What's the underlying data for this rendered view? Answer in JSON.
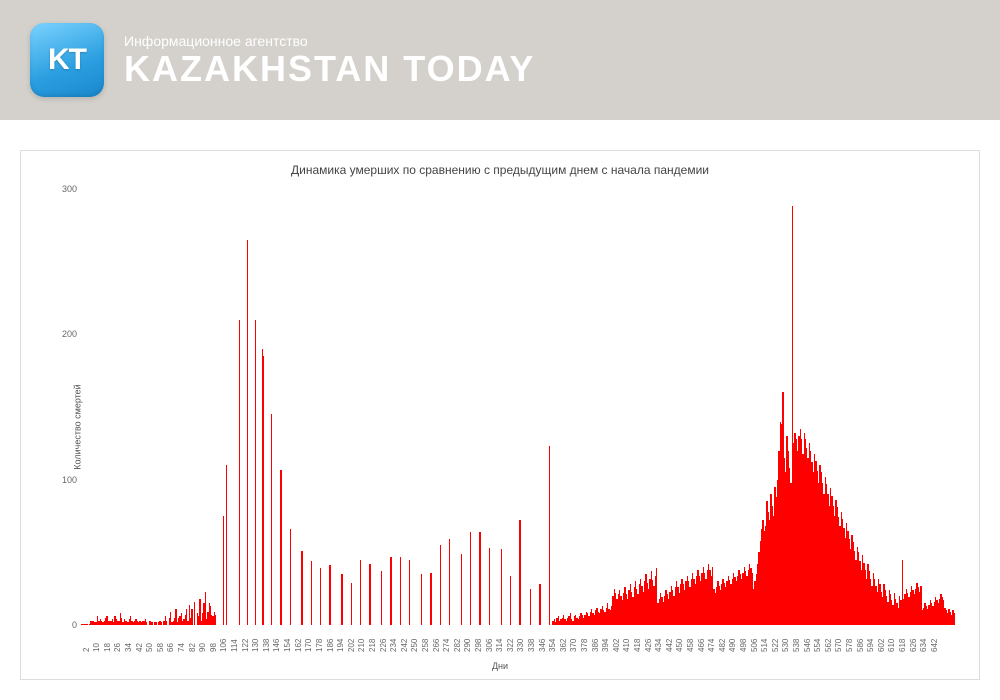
{
  "header": {
    "band_color": "#d4d1cc",
    "logo_text": "KT",
    "subtitle": "Информационное агентство",
    "maintitle": "KAZAKHSTAN TODAY",
    "text_color": "#ffffff"
  },
  "chart": {
    "type": "bar",
    "title": "Динамика умерших по сравнению с предыдущим днем с начала пандемии",
    "title_fontsize": 12,
    "ylabel": "Количество смертей",
    "xlabel": "Дни",
    "label_fontsize": 9,
    "bar_color": "#ff0000",
    "background_color": "#ffffff",
    "border_color": "#dddddd",
    "ylim": [
      0,
      300
    ],
    "yticks": [
      0,
      100,
      200,
      300
    ],
    "xtick_start": 2,
    "xtick_step": 8,
    "xtick_end": 642,
    "data_start_day": 2,
    "values": [
      1,
      1,
      1,
      1,
      1,
      0,
      1,
      3,
      3,
      3,
      2,
      2,
      6,
      3,
      4,
      3,
      2,
      3,
      5,
      6,
      3,
      3,
      3,
      4,
      2,
      6,
      4,
      3,
      3,
      8,
      5,
      2,
      4,
      3,
      3,
      2,
      4,
      6,
      3,
      2,
      3,
      4,
      3,
      2,
      3,
      2,
      3,
      3,
      4,
      2,
      0,
      3,
      3,
      2,
      0,
      2,
      2,
      0,
      2,
      3,
      2,
      0,
      3,
      6,
      3,
      0,
      5,
      9,
      2,
      3,
      5,
      11,
      2,
      5,
      6,
      8,
      3,
      4,
      7,
      11,
      3,
      14,
      5,
      11,
      0,
      16,
      0,
      8,
      6,
      18,
      3,
      8,
      15,
      23,
      4,
      9,
      15,
      13,
      7,
      6,
      9,
      7,
      0,
      0,
      0,
      0,
      0,
      75,
      0,
      110,
      0,
      0,
      0,
      0,
      0,
      0,
      0,
      0,
      0,
      210,
      0,
      0,
      0,
      0,
      0,
      265,
      0,
      0,
      0,
      0,
      0,
      210,
      0,
      0,
      0,
      0,
      190,
      185,
      0,
      0,
      0,
      0,
      0,
      145,
      0,
      0,
      0,
      0,
      0,
      0,
      107,
      0,
      0,
      0,
      0,
      0,
      0,
      66,
      0,
      0,
      0,
      0,
      0,
      0,
      0,
      0,
      51,
      0,
      0,
      0,
      0,
      0,
      0,
      44,
      0,
      0,
      0,
      0,
      0,
      0,
      39,
      0,
      0,
      0,
      0,
      0,
      0,
      41,
      0,
      0,
      0,
      0,
      0,
      0,
      0,
      0,
      35,
      0,
      0,
      0,
      0,
      0,
      0,
      29,
      0,
      0,
      0,
      0,
      0,
      0,
      45,
      0,
      0,
      0,
      0,
      0,
      0,
      42,
      0,
      0,
      0,
      0,
      0,
      0,
      0,
      0,
      37,
      0,
      0,
      0,
      0,
      0,
      0,
      47,
      0,
      0,
      0,
      0,
      0,
      0,
      47,
      0,
      0,
      0,
      0,
      0,
      0,
      45,
      0,
      0,
      0,
      0,
      0,
      0,
      0,
      0,
      35,
      0,
      0,
      0,
      0,
      0,
      0,
      36,
      0,
      0,
      0,
      0,
      0,
      0,
      55,
      0,
      0,
      0,
      0,
      0,
      0,
      59,
      0,
      0,
      0,
      0,
      0,
      0,
      0,
      0,
      49,
      0,
      0,
      0,
      0,
      0,
      0,
      64,
      0,
      0,
      0,
      0,
      0,
      0,
      64,
      0,
      0,
      0,
      0,
      0,
      0,
      53,
      0,
      0,
      0,
      0,
      0,
      0,
      0,
      0,
      52,
      0,
      0,
      0,
      0,
      0,
      0,
      34,
      0,
      0,
      0,
      0,
      0,
      0,
      72,
      0,
      0,
      0,
      0,
      0,
      0,
      0,
      25,
      0,
      0,
      0,
      0,
      0,
      0,
      28,
      0,
      0,
      0,
      0,
      0,
      0,
      123,
      0,
      0,
      3,
      4,
      2,
      5,
      6,
      3,
      4,
      5,
      7,
      4,
      3,
      5,
      6,
      8,
      4,
      3,
      6,
      7,
      5,
      4,
      6,
      8,
      7,
      5,
      7,
      9,
      8,
      6,
      9,
      11,
      8,
      7,
      10,
      12,
      9,
      8,
      11,
      13,
      10,
      9,
      12,
      15,
      11,
      10,
      13,
      20,
      25,
      22,
      18,
      21,
      24,
      20,
      17,
      22,
      26,
      21,
      18,
      24,
      28,
      23,
      19,
      26,
      30,
      25,
      21,
      28,
      32,
      27,
      23,
      30,
      35,
      29,
      25,
      32,
      37,
      31,
      27,
      34,
      39,
      15,
      18,
      22,
      19,
      16,
      20,
      24,
      21,
      18,
      23,
      27,
      24,
      20,
      26,
      30,
      26,
      22,
      28,
      32,
      28,
      24,
      30,
      34,
      30,
      26,
      32,
      36,
      32,
      28,
      34,
      38,
      34,
      30,
      36,
      40,
      36,
      32,
      38,
      42,
      38,
      34,
      40,
      25,
      22,
      26,
      30,
      27,
      24,
      28,
      32,
      29,
      26,
      30,
      34,
      31,
      28,
      32,
      36,
      33,
      30,
      34,
      38,
      35,
      32,
      36,
      40,
      37,
      34,
      38,
      42,
      39,
      36,
      25,
      30,
      35,
      42,
      50,
      58,
      66,
      72,
      65,
      68,
      85,
      78,
      72,
      90,
      82,
      75,
      95,
      88,
      100,
      120,
      140,
      138,
      160,
      115,
      105,
      130,
      120,
      108,
      98,
      288,
      125,
      132,
      128,
      120,
      130,
      135,
      128,
      118,
      132,
      128,
      122,
      115,
      125,
      120,
      112,
      105,
      118,
      113,
      106,
      98,
      110,
      105,
      98,
      90,
      102,
      97,
      90,
      82,
      94,
      89,
      82,
      75,
      86,
      81,
      74,
      68,
      78,
      73,
      67,
      60,
      70,
      65,
      59,
      52,
      62,
      57,
      51,
      45,
      54,
      50,
      44,
      38,
      48,
      43,
      38,
      32,
      42,
      37,
      32,
      27,
      36,
      32,
      27,
      23,
      32,
      28,
      23,
      19,
      28,
      24,
      20,
      16,
      24,
      21,
      17,
      14,
      22,
      18,
      15,
      12,
      20,
      17,
      45,
      18,
      21,
      25,
      22,
      19,
      23,
      27,
      24,
      21,
      25,
      29,
      26,
      23,
      27,
      10,
      12,
      15,
      13,
      11,
      14,
      17,
      15,
      13,
      16,
      19,
      17,
      15,
      18,
      21,
      19,
      17,
      12,
      10,
      8,
      11,
      9,
      7,
      10,
      8
    ]
  }
}
